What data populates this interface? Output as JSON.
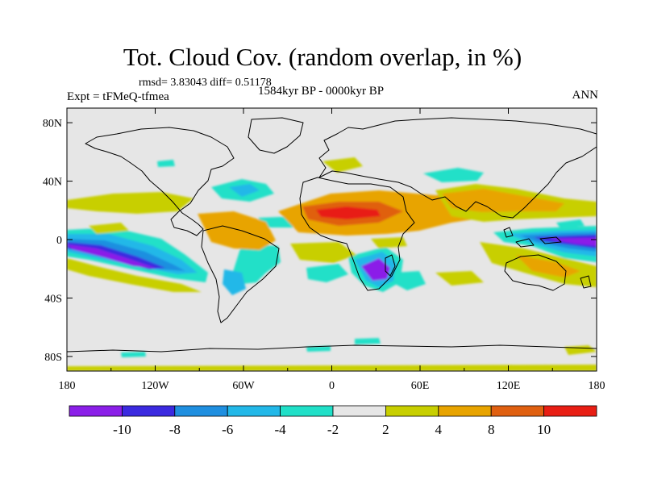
{
  "figure": {
    "title": "Tot. Cloud Cov. (random overlap, in %)",
    "stats": "rmsd= 3.83043 diff= 0.51178",
    "experiment": "Expt = tFMeQ-tfmea",
    "period": "1584kyr BP - 0000kyr BP",
    "season": "ANN"
  },
  "map": {
    "projection": "cylindrical-equidistant",
    "background_color": "#e6e6e6",
    "coast_color": "#000000",
    "lon_range": [
      -180,
      180
    ],
    "lat_range": [
      -90,
      90
    ],
    "lon_ticks": [
      {
        "value": -180,
        "label": "180"
      },
      {
        "value": -120,
        "label": "120W"
      },
      {
        "value": -60,
        "label": "60W"
      },
      {
        "value": 0,
        "label": "0"
      },
      {
        "value": 60,
        "label": "60E"
      },
      {
        "value": 120,
        "label": "120E"
      },
      {
        "value": 180,
        "label": "180"
      }
    ],
    "lat_ticks": [
      {
        "value": 80,
        "label": "80N"
      },
      {
        "value": 40,
        "label": "40N"
      },
      {
        "value": 0,
        "label": "0"
      },
      {
        "value": -40,
        "label": "40S"
      },
      {
        "value": -80,
        "label": "80S"
      }
    ]
  },
  "colorbar": {
    "levels": [
      -10,
      -8,
      -6,
      -4,
      -2,
      2,
      4,
      8,
      10
    ],
    "labels": [
      "-10",
      "-8",
      "-6",
      "-4",
      "-2",
      "2",
      "4",
      "8",
      "10"
    ],
    "colors": [
      "#8b1fe8",
      "#3b2ae0",
      "#1f8fe0",
      "#22b8e8",
      "#20e0c8",
      "#e6e6e6",
      "#c8cf00",
      "#e8a400",
      "#e06010",
      "#e81e14"
    ]
  }
}
